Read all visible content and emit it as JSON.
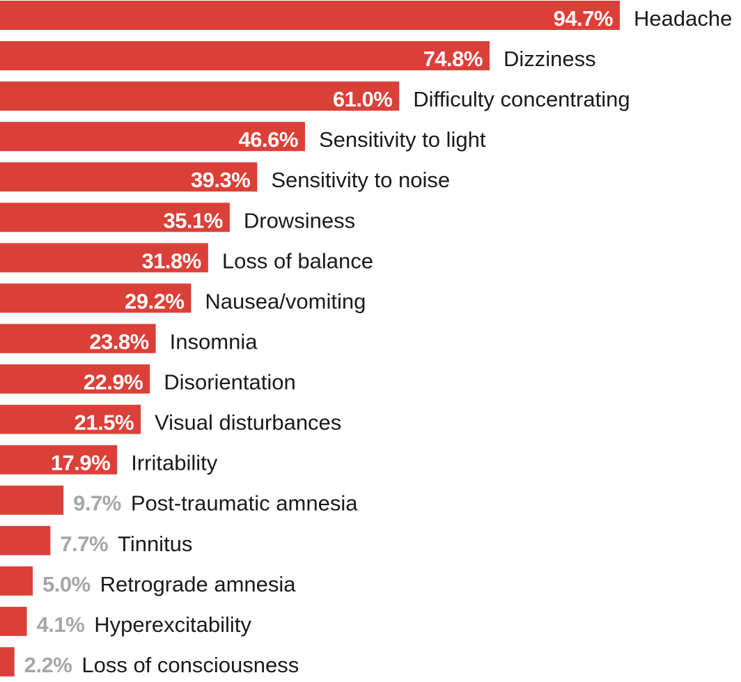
{
  "chart_data": {
    "type": "bar",
    "orientation": "horizontal",
    "categories": [
      "Headache",
      "Dizziness",
      "Difficulty concentrating",
      "Sensitivity to light",
      "Sensitivity to noise",
      "Drowsiness",
      "Loss of balance",
      "Nausea/vomiting",
      "Insomnia",
      "Disorientation",
      "Visual disturbances",
      "Irritability",
      "Post-traumatic amnesia",
      "Tinnitus",
      "Retrograde amnesia",
      "Hyperexcitability",
      "Loss of consciousness"
    ],
    "values": [
      94.7,
      74.8,
      61.0,
      46.6,
      39.3,
      35.1,
      31.8,
      29.2,
      23.8,
      22.9,
      21.5,
      17.9,
      9.7,
      7.7,
      5.0,
      4.1,
      2.2
    ],
    "value_labels": [
      "94.7%",
      "74.8%",
      "61.0%",
      "46.6%",
      "39.3%",
      "35.1%",
      "31.8%",
      "29.2%",
      "23.8%",
      "22.9%",
      "21.5%",
      "17.9%",
      "9.7%",
      "7.7%",
      "5.0%",
      "4.1%",
      "2.2%"
    ],
    "title": "",
    "xlabel": "",
    "ylabel": "",
    "xlim": [
      0,
      100
    ],
    "grid": false,
    "legend": "none",
    "colors": {
      "bar": "#db4038",
      "label_inside": "#ffffff",
      "label_outside": "#a6a6a6",
      "category_text": "#1a1a1a"
    }
  }
}
